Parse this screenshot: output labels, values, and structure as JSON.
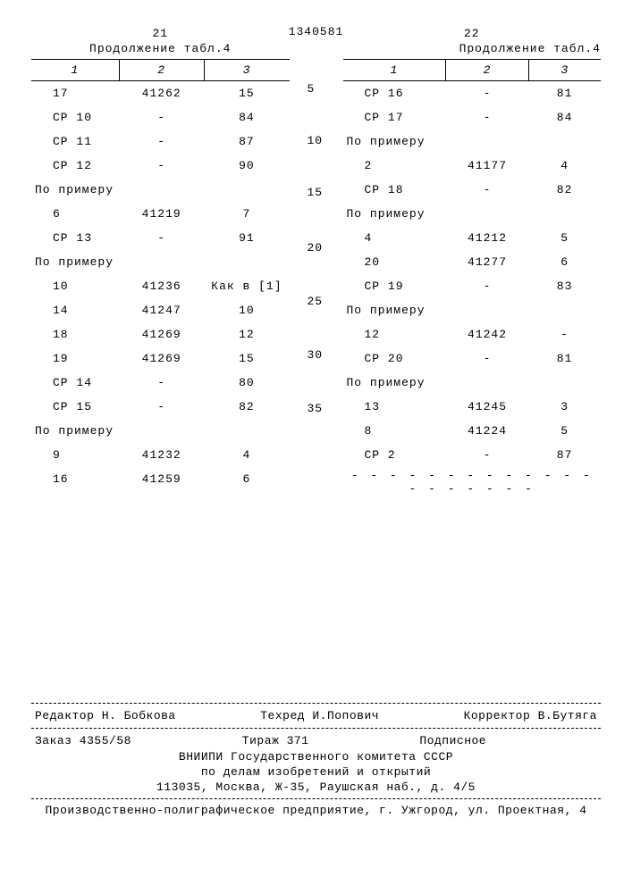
{
  "docnum": "1340581",
  "left": {
    "page": "21",
    "caption": "Продолжение табл.4",
    "headers": [
      "1",
      "2",
      "3"
    ],
    "rows": [
      {
        "c1": "17",
        "c2": "41262",
        "c3": "15"
      },
      {
        "c1": "СР 10",
        "c2": "-",
        "c3": "84"
      },
      {
        "c1": "СР 11",
        "c2": "-",
        "c3": "87"
      },
      {
        "c1": "СР 12",
        "c2": "-",
        "c3": "90"
      },
      {
        "c1": "По примеру",
        "c2": "",
        "c3": "",
        "section": true
      },
      {
        "c1": "6",
        "c2": "41219",
        "c3": "7"
      },
      {
        "c1": "СР 13",
        "c2": "-",
        "c3": "91"
      },
      {
        "c1": "По примеру",
        "c2": "",
        "c3": "",
        "section": true
      },
      {
        "c1": "10",
        "c2": "41236",
        "c3": "Как в [1]"
      },
      {
        "c1": "14",
        "c2": "41247",
        "c3": "10"
      },
      {
        "c1": "18",
        "c2": "41269",
        "c3": "12"
      },
      {
        "c1": "19",
        "c2": "41269",
        "c3": "15"
      },
      {
        "c1": "СР 14",
        "c2": "-",
        "c3": "80"
      },
      {
        "c1": "СР 15",
        "c2": "-",
        "c3": "82"
      },
      {
        "c1": "По примеру",
        "c2": "",
        "c3": "",
        "section": true
      },
      {
        "c1": "9",
        "c2": "41232",
        "c3": "4"
      },
      {
        "c1": "16",
        "c2": "41259",
        "c3": "6"
      }
    ]
  },
  "linenums": [
    "5",
    "10",
    "15",
    "20",
    "25",
    "30",
    "35"
  ],
  "right": {
    "page": "22",
    "caption": "Продолжение табл.4",
    "headers": [
      "1",
      "2",
      "3"
    ],
    "rows": [
      {
        "c1": "СР 16",
        "c2": "-",
        "c3": "81"
      },
      {
        "c1": "СР 17",
        "c2": "-",
        "c3": "84"
      },
      {
        "c1": "По примеру",
        "c2": "",
        "c3": "",
        "section": true
      },
      {
        "c1": "2",
        "c2": "41177",
        "c3": "4"
      },
      {
        "c1": "СР 18",
        "c2": "-",
        "c3": "82"
      },
      {
        "c1": "По примеру",
        "c2": "",
        "c3": "",
        "section": true
      },
      {
        "c1": "4",
        "c2": "41212",
        "c3": "5"
      },
      {
        "c1": "20",
        "c2": "41277",
        "c3": "6"
      },
      {
        "c1": "СР 19",
        "c2": "-",
        "c3": "83"
      },
      {
        "c1": "По примеру",
        "c2": "",
        "c3": "",
        "section": true
      },
      {
        "c1": "12",
        "c2": "41242",
        "c3": "-"
      },
      {
        "c1": "СР 20",
        "c2": "-",
        "c3": "81"
      },
      {
        "c1": "По примеру",
        "c2": "",
        "c3": "",
        "section": true
      },
      {
        "c1": "13",
        "c2": "41245",
        "c3": "3"
      },
      {
        "c1": "8",
        "c2": "41224",
        "c3": "5"
      },
      {
        "c1": "СР 2",
        "c2": "-",
        "c3": "87"
      }
    ]
  },
  "footer": {
    "editor": "Редактор Н. Бобкова",
    "techred": "Техред И.Попович",
    "corrector": "Корректор В.Бутяга",
    "order": "Заказ 4355/58",
    "tirage": "Тираж 371",
    "subscription": "Подписное",
    "org1": "ВНИИПИ Государственного комитета СССР",
    "org2": "по делам изобретений и открытий",
    "addr": "113035, Москва, Ж-35, Раушская наб., д. 4/5",
    "print": "Производственно-полиграфическое предприятие, г. Ужгород, ул. Проектная, 4"
  }
}
